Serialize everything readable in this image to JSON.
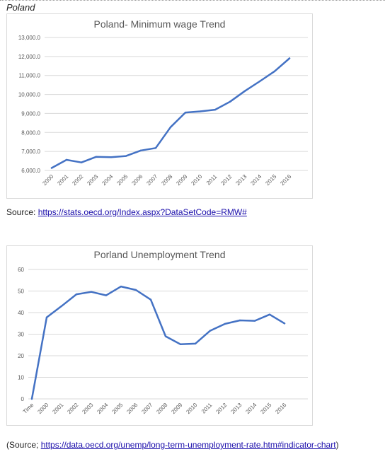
{
  "heading": "Poland",
  "chart_data": [
    {
      "type": "line",
      "title": "Poland- Minimum wage Trend",
      "xlabel": "",
      "ylabel": "",
      "x": [
        "2000",
        "2001",
        "2002",
        "2003",
        "2004",
        "2005",
        "2006",
        "2007",
        "2008",
        "2009",
        "2010",
        "2011",
        "2012",
        "2013",
        "2014",
        "2015",
        "2016"
      ],
      "series": [
        {
          "values": [
            6130,
            6560,
            6420,
            6720,
            6700,
            6760,
            7050,
            7180,
            8280,
            9050,
            9110,
            9200,
            9620,
            10180,
            10690,
            11220,
            11900
          ]
        }
      ],
      "ylim": [
        6000,
        13000
      ],
      "yticks": [
        "6,000.0",
        "7,000.0",
        "8,000.0",
        "9,000.0",
        "10,000.0",
        "11,000.0",
        "12,000.0",
        "13,000.0"
      ],
      "ytick_values": [
        6000,
        7000,
        8000,
        9000,
        10000,
        11000,
        12000,
        13000
      ],
      "grid": true,
      "color": "#4472c4"
    },
    {
      "type": "line",
      "title": "Porland Unemployment Trend",
      "xlabel": "",
      "ylabel": "",
      "x": [
        "Time",
        "2000",
        "2001",
        "2002",
        "2003",
        "2004",
        "2005",
        "2006",
        "2007",
        "2008",
        "2009",
        "2010",
        "2011",
        "2012",
        "2013",
        "2014",
        "2015",
        "2016"
      ],
      "series": [
        {
          "values": [
            0,
            37.8,
            43,
            48.5,
            49.6,
            48,
            52.1,
            50.5,
            46,
            29,
            25.3,
            25.6,
            31.6,
            34.8,
            36.4,
            36.2,
            39.1,
            35
          ]
        }
      ],
      "ylim": [
        0,
        60
      ],
      "yticks": [
        "0",
        "10",
        "20",
        "30",
        "40",
        "50",
        "60"
      ],
      "ytick_values": [
        0,
        10,
        20,
        30,
        40,
        50,
        60
      ],
      "grid": true,
      "color": "#4472c4"
    }
  ],
  "sources": [
    {
      "prefix": "Source: ",
      "link": "https://stats.oecd.org/Index.aspx?DataSetCode=RMW#",
      "suffix": ""
    },
    {
      "prefix": "(Source; ",
      "link": "https://data.oecd.org/unemp/long-term-unemployment-rate.htm#indicator-chart",
      "suffix": ")"
    }
  ]
}
